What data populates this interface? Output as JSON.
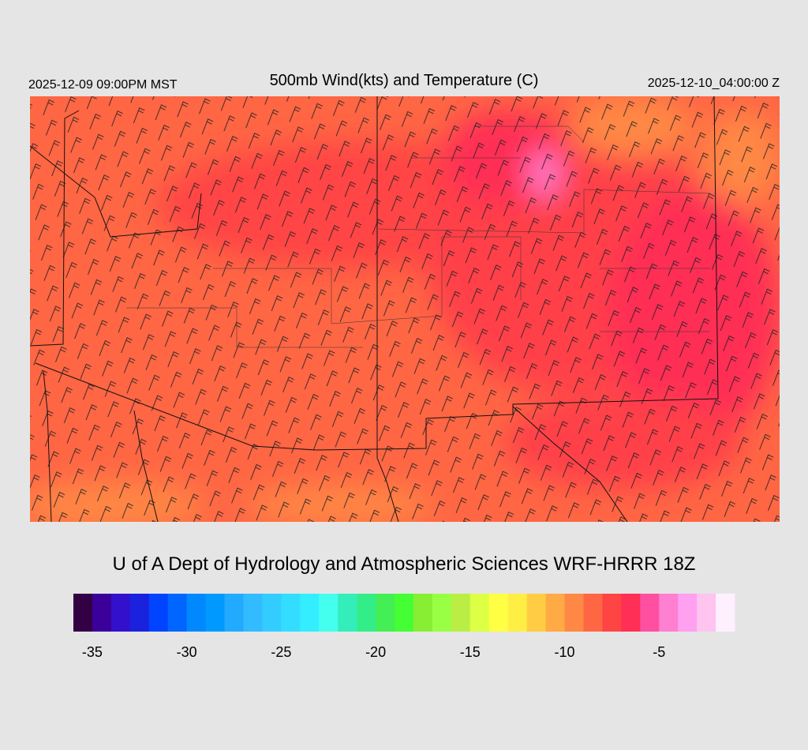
{
  "header": {
    "left": "2025-12-09 09:00PM MST",
    "title": "500mb Wind(kts) and Temperature (C)",
    "right": "2025-12-10_04:00:00 Z"
  },
  "credit": "U of A Dept of Hydrology and Atmospheric Sciences WRF-HRRR 18Z",
  "colorbar": {
    "range": [
      -36,
      -1
    ],
    "colors": [
      "#330044",
      "#3a0099",
      "#3311cc",
      "#1a22dd",
      "#0044ff",
      "#0066ff",
      "#0088ff",
      "#0099ff",
      "#22aaff",
      "#33bbff",
      "#33ccff",
      "#33ddff",
      "#33eeff",
      "#44ffee",
      "#33eebb",
      "#33ee88",
      "#44ee55",
      "#44ff33",
      "#88ee33",
      "#99ff44",
      "#bbee44",
      "#ddff44",
      "#ffff44",
      "#ffee44",
      "#ffcc44",
      "#ffaa44",
      "#ff8844",
      "#ff6644",
      "#ff4444",
      "#ff2f55",
      "#ff4fa0",
      "#ff7fd0",
      "#ffa0f0",
      "#ffc4f0",
      "#fff0ff"
    ],
    "ticks": [
      -35,
      -30,
      -25,
      -20,
      -15,
      -10,
      -5
    ]
  }
}
